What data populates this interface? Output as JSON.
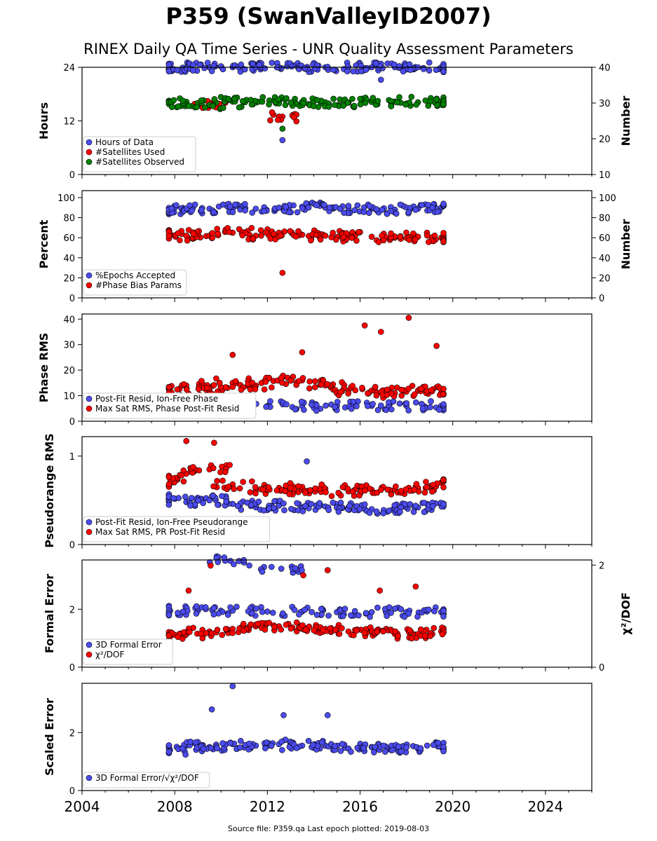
{
  "header": {
    "title": "P359 (SwanValleyID2007)",
    "subtitle": "RINEX Daily QA Time Series - UNR Quality Assessment Parameters"
  },
  "footer": {
    "source_text": "Source file: P359.qa Last epoch plotted: 2019-08-03"
  },
  "colors": {
    "blue": "#4b4bf0",
    "red": "#ff0000",
    "green": "#008000",
    "edge": "#000000"
  },
  "chart_data": [
    {
      "type": "scatter",
      "ylabel": "Hours",
      "ylabel_right": "Number",
      "xlim": [
        2004,
        2026
      ],
      "ylim": [
        0,
        24
      ],
      "yticks": [
        "0",
        "12",
        "24"
      ],
      "ylim_right": [
        10,
        40
      ],
      "yticks_right": [
        "10",
        "20",
        "30",
        "40"
      ],
      "legend": "lower-left",
      "series": [
        {
          "name": "Hours of Data",
          "color": "#4b4bf0",
          "axis": "left",
          "points": [
            [
              2007.8,
              24
            ],
            [
              2008.5,
              24
            ],
            [
              2009.5,
              24
            ],
            [
              2010.5,
              24
            ],
            [
              2011.5,
              24
            ],
            [
              2012.5,
              24
            ],
            [
              2013.5,
              24
            ],
            [
              2014.5,
              24
            ],
            [
              2015.5,
              24
            ],
            [
              2016.5,
              24
            ],
            [
              2017.5,
              24
            ],
            [
              2018.5,
              24
            ],
            [
              2019.5,
              24
            ],
            [
              2012.65,
              7.7
            ],
            [
              2016.9,
              21.2
            ]
          ]
        },
        {
          "name": "#Satellites Used",
          "color": "#ff0000",
          "axis": "right",
          "points": [
            [
              2009.6,
              30.0
            ],
            [
              2012.65,
              26.2
            ]
          ]
        },
        {
          "name": "#Satellites Observed",
          "color": "#008000",
          "axis": "right",
          "points": [
            [
              2007.8,
              30.0
            ],
            [
              2008.5,
              29.6
            ],
            [
              2009.5,
              29.5
            ],
            [
              2010.5,
              30.4
            ],
            [
              2011.5,
              30.1
            ],
            [
              2012.5,
              30.5
            ],
            [
              2013.5,
              30.3
            ],
            [
              2014.5,
              30.2
            ],
            [
              2015.5,
              30.1
            ],
            [
              2016.5,
              30.3
            ],
            [
              2017.5,
              30.4
            ],
            [
              2018.5,
              30.2
            ],
            [
              2019.5,
              30.4
            ],
            [
              2012.65,
              22.8
            ]
          ]
        }
      ]
    },
    {
      "type": "scatter",
      "ylabel": "Percent",
      "ylabel_right": "Number",
      "xlim": [
        2004,
        2026
      ],
      "ylim": [
        0,
        107
      ],
      "yticks": [
        "0",
        "20",
        "40",
        "60",
        "80",
        "100"
      ],
      "ylim_right": [
        0,
        107
      ],
      "yticks_right": [
        "0",
        "20",
        "40",
        "60",
        "80",
        "100"
      ],
      "legend": "lower-left",
      "series": [
        {
          "name": "%Epochs Accepted",
          "color": "#4b4bf0",
          "axis": "left",
          "points": [
            [
              2007.8,
              88
            ],
            [
              2008.5,
              88
            ],
            [
              2009.5,
              89
            ],
            [
              2010.5,
              89
            ],
            [
              2011.5,
              89
            ],
            [
              2012.5,
              90
            ],
            [
              2013.5,
              91
            ],
            [
              2014.5,
              90
            ],
            [
              2015.5,
              89
            ],
            [
              2016.5,
              89
            ],
            [
              2017.5,
              88
            ],
            [
              2018.5,
              89
            ],
            [
              2019.5,
              90
            ]
          ]
        },
        {
          "name": "#Phase Bias Params",
          "color": "#ff0000",
          "axis": "right",
          "points": [
            [
              2007.8,
              64
            ],
            [
              2008.5,
              62
            ],
            [
              2009.5,
              62
            ],
            [
              2010.5,
              65
            ],
            [
              2011.5,
              62
            ],
            [
              2012.5,
              65
            ],
            [
              2013.5,
              63
            ],
            [
              2014.5,
              62
            ],
            [
              2015.5,
              61
            ],
            [
              2016.5,
              61
            ],
            [
              2017.5,
              60
            ],
            [
              2018.5,
              61
            ],
            [
              2019.5,
              60
            ],
            [
              2012.65,
              25
            ]
          ]
        }
      ]
    },
    {
      "type": "scatter",
      "ylabel": "Phase RMS",
      "xlim": [
        2004,
        2026
      ],
      "ylim": [
        0,
        42
      ],
      "yticks": [
        "0",
        "10",
        "20",
        "30",
        "40"
      ],
      "legend": "lower-left",
      "series": [
        {
          "name": "Post-Fit Resid, Ion-Free Phase",
          "color": "#4b4bf0",
          "axis": "left",
          "points": [
            [
              2007.8,
              6
            ],
            [
              2009.0,
              6
            ],
            [
              2010.5,
              6
            ],
            [
              2012.0,
              6
            ],
            [
              2013.5,
              6
            ],
            [
              2015.0,
              6
            ],
            [
              2016.5,
              6
            ],
            [
              2018.0,
              6
            ],
            [
              2019.5,
              6
            ]
          ]
        },
        {
          "name": "Max Sat RMS, Phase Post-Fit Resid",
          "color": "#ff0000",
          "axis": "left",
          "points": [
            [
              2007.8,
              12
            ],
            [
              2008.5,
              14
            ],
            [
              2009.5,
              12
            ],
            [
              2010.5,
              15
            ],
            [
              2011.5,
              14
            ],
            [
              2012.5,
              16
            ],
            [
              2013.5,
              16
            ],
            [
              2014.5,
              14
            ],
            [
              2015.5,
              12
            ],
            [
              2016.5,
              12
            ],
            [
              2017.5,
              11
            ],
            [
              2018.5,
              12
            ],
            [
              2019.5,
              11
            ],
            [
              2010.5,
              26
            ],
            [
              2013.5,
              27
            ],
            [
              2016.2,
              37.5
            ],
            [
              2016.9,
              35
            ],
            [
              2018.1,
              40.5
            ],
            [
              2019.3,
              29.5
            ]
          ]
        }
      ]
    },
    {
      "type": "scatter",
      "ylabel": "Pseudorange RMS",
      "xlim": [
        2004,
        2026
      ],
      "ylim": [
        0,
        1.22
      ],
      "yticks": [
        "0",
        "1"
      ],
      "legend": "lower-left",
      "series": [
        {
          "name": "Post-Fit Resid, Ion-Free Pseudorange",
          "color": "#4b4bf0",
          "axis": "left",
          "points": [
            [
              2007.8,
              0.52
            ],
            [
              2008.5,
              0.48
            ],
            [
              2009.5,
              0.5
            ],
            [
              2010.5,
              0.46
            ],
            [
              2011.5,
              0.42
            ],
            [
              2012.5,
              0.44
            ],
            [
              2013.5,
              0.42
            ],
            [
              2014.5,
              0.43
            ],
            [
              2015.5,
              0.42
            ],
            [
              2016.5,
              0.4
            ],
            [
              2017.5,
              0.41
            ],
            [
              2018.5,
              0.42
            ],
            [
              2019.5,
              0.45
            ],
            [
              2013.7,
              0.94
            ]
          ]
        },
        {
          "name": "Max Sat RMS, PR Post-Fit Resid",
          "color": "#ff0000",
          "axis": "left",
          "points": [
            [
              2007.8,
              0.7
            ],
            [
              2008.5,
              0.8
            ],
            [
              2009.5,
              0.85
            ],
            [
              2010.5,
              0.68
            ],
            [
              2011.5,
              0.62
            ],
            [
              2012.5,
              0.64
            ],
            [
              2013.5,
              0.62
            ],
            [
              2014.5,
              0.63
            ],
            [
              2015.5,
              0.6
            ],
            [
              2016.5,
              0.62
            ],
            [
              2017.5,
              0.62
            ],
            [
              2018.5,
              0.64
            ],
            [
              2019.5,
              0.7
            ],
            [
              2008.5,
              1.17
            ],
            [
              2009.7,
              1.15
            ]
          ]
        }
      ]
    },
    {
      "type": "scatter",
      "ylabel": "Formal Error",
      "ylabel_right": "χ²/DOF",
      "xlim": [
        2004,
        2026
      ],
      "ylim": [
        0,
        3.7
      ],
      "yticks": [
        "0",
        "2"
      ],
      "ylim_right": [
        0,
        2.1
      ],
      "yticks_right": [
        "0",
        "2"
      ],
      "legend": "lower-left",
      "series": [
        {
          "name": "3D Formal Error",
          "color": "#4b4bf0",
          "axis": "left",
          "points": [
            [
              2007.8,
              1.95
            ],
            [
              2009.0,
              1.95
            ],
            [
              2010.5,
              1.95
            ],
            [
              2012.0,
              1.92
            ],
            [
              2013.5,
              1.92
            ],
            [
              2015.0,
              1.9
            ],
            [
              2016.5,
              1.9
            ],
            [
              2018.0,
              1.9
            ],
            [
              2019.5,
              1.9
            ],
            [
              2010.4,
              3.67
            ],
            [
              2012.6,
              3.4
            ]
          ]
        },
        {
          "name": "χ²/DOF",
          "color": "#ff0000",
          "axis": "right",
          "points": [
            [
              2007.8,
              0.6
            ],
            [
              2008.5,
              0.65
            ],
            [
              2009.5,
              0.7
            ],
            [
              2010.5,
              0.75
            ],
            [
              2011.5,
              0.8
            ],
            [
              2012.5,
              0.8
            ],
            [
              2013.5,
              0.75
            ],
            [
              2014.5,
              0.75
            ],
            [
              2015.5,
              0.7
            ],
            [
              2016.5,
              0.7
            ],
            [
              2017.5,
              0.65
            ],
            [
              2018.5,
              0.65
            ],
            [
              2019.5,
              0.7
            ],
            [
              2009.55,
              1.99
            ],
            [
              2013.55,
              1.8
            ],
            [
              2014.6,
              1.9
            ],
            [
              2016.85,
              1.5
            ],
            [
              2018.4,
              1.58
            ],
            [
              2008.6,
              1.5
            ]
          ]
        }
      ]
    },
    {
      "type": "scatter",
      "ylabel": "Scaled Error",
      "xlim": [
        2004,
        2026
      ],
      "ylim": [
        0,
        3.7
      ],
      "yticks": [
        "0",
        "2"
      ],
      "xticks": [
        "2004",
        "2008",
        "2012",
        "2016",
        "2020",
        "2024"
      ],
      "legend": "lower-left",
      "series": [
        {
          "name": "3D Formal Error/√χ²/DOF",
          "color": "#4b4bf0",
          "axis": "left",
          "points": [
            [
              2007.8,
              1.4
            ],
            [
              2008.5,
              1.55
            ],
            [
              2009.5,
              1.5
            ],
            [
              2010.5,
              1.6
            ],
            [
              2011.5,
              1.55
            ],
            [
              2012.5,
              1.6
            ],
            [
              2013.5,
              1.55
            ],
            [
              2014.5,
              1.55
            ],
            [
              2015.5,
              1.45
            ],
            [
              2016.5,
              1.5
            ],
            [
              2017.5,
              1.45
            ],
            [
              2018.5,
              1.45
            ],
            [
              2019.5,
              1.5
            ],
            [
              2010.5,
              3.6
            ],
            [
              2009.6,
              2.8
            ],
            [
              2012.7,
              2.6
            ],
            [
              2014.6,
              2.6
            ]
          ]
        }
      ]
    }
  ]
}
